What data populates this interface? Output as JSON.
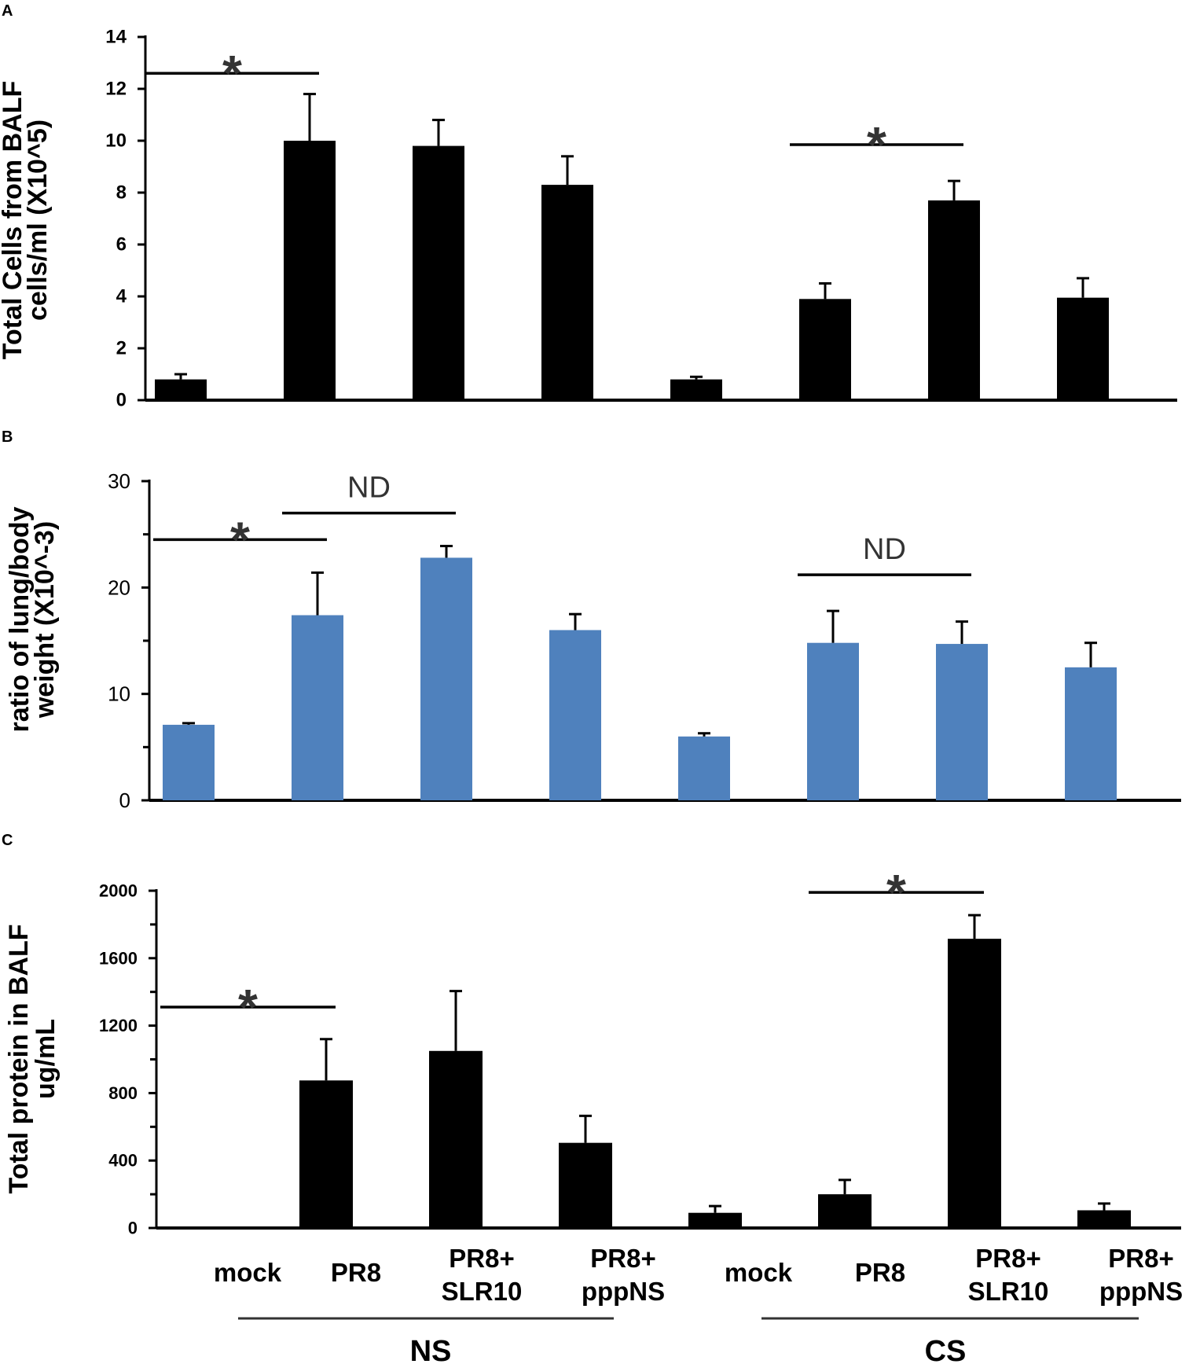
{
  "chart_data": [
    {
      "panel_label": "A",
      "type": "bar",
      "ylabel_line1": "Total Cells from BALF",
      "ylabel_line2": "cells/ml (X10^5)",
      "ylim": [
        0,
        14
      ],
      "major_ticks": [
        0,
        2,
        4,
        6,
        8,
        10,
        12,
        14
      ],
      "minor_ticks": [],
      "bar_color": "#000000",
      "values": [
        0.8,
        10.0,
        9.8,
        8.3,
        0.8,
        3.9,
        7.7,
        3.95
      ],
      "errors": [
        0.2,
        1.8,
        1.0,
        1.1,
        0.1,
        0.6,
        0.75,
        0.75
      ],
      "annotations": [
        {
          "text": "*",
          "from": 0,
          "to": 1,
          "y": 12.6
        },
        {
          "text": "*",
          "from": 5,
          "to": 6,
          "y": 9.85
        }
      ]
    },
    {
      "panel_label": "B",
      "type": "bar",
      "ylabel_line1": "ratio of lung/body",
      "ylabel_line2": "weight (X10^-3)",
      "ylim": [
        0,
        30
      ],
      "major_ticks": [
        0,
        10,
        20,
        30
      ],
      "minor_ticks": [
        5,
        15,
        25
      ],
      "bar_color": "#4f81bd",
      "values": [
        7.1,
        17.4,
        22.8,
        16.0,
        6.0,
        14.8,
        14.7,
        12.5
      ],
      "errors": [
        0.15,
        4.0,
        1.1,
        1.5,
        0.3,
        3.0,
        2.1,
        2.3
      ],
      "annotations": [
        {
          "text": "*",
          "from": 0,
          "to": 1,
          "y": 24.5
        },
        {
          "text": "ND",
          "from": 1,
          "to": 2,
          "y": 27.0
        },
        {
          "text": "ND",
          "from": 5,
          "to": 6,
          "y": 21.2
        }
      ]
    },
    {
      "panel_label": "C",
      "type": "bar",
      "ylabel_line1": "Total protein in BALF",
      "ylabel_line2": "ug/mL",
      "ylim": [
        0,
        2000
      ],
      "major_ticks": [
        0,
        400,
        800,
        1200,
        1600,
        2000
      ],
      "minor_ticks": [
        200,
        600,
        1000,
        1400,
        1800
      ],
      "bar_color": "#000000",
      "values": [
        0,
        875,
        1050,
        505,
        90,
        200,
        1715,
        105
      ],
      "errors": [
        0,
        245,
        355,
        160,
        40,
        85,
        140,
        40
      ],
      "annotations": [
        {
          "text": "*",
          "from": 0,
          "to": 1,
          "y": 1310
        },
        {
          "text": "*",
          "from": 5,
          "to": 6,
          "y": 1990
        }
      ]
    }
  ],
  "x_categories": [
    [
      "mock"
    ],
    [
      "PR8"
    ],
    [
      "PR8+",
      "SLR10"
    ],
    [
      "PR8+",
      "pppNS"
    ],
    [
      "mock"
    ],
    [
      "PR8"
    ],
    [
      "PR8+",
      "SLR10"
    ],
    [
      "PR8+",
      "pppNS"
    ]
  ],
  "groups": [
    {
      "label": "NS",
      "from": 1,
      "to": 3
    },
    {
      "label": "CS",
      "from": 5,
      "to": 7
    }
  ]
}
